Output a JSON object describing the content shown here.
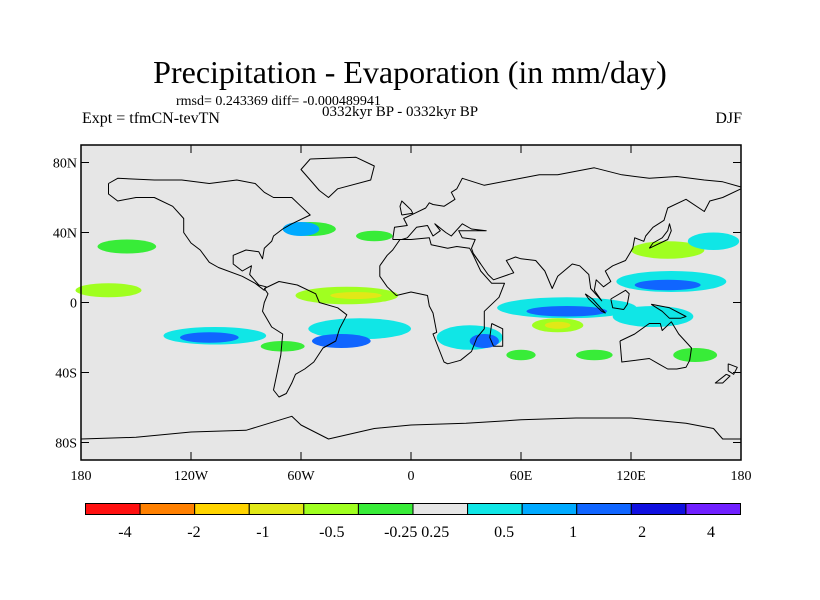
{
  "chart_data": {
    "type": "heatmap",
    "title": "Precipitation - Evaporation (in mm/day)",
    "stats_text": "rmsd= 0.243369 diff= -0.000489941",
    "period_text": "0332kyr BP - 0332kyr BP",
    "experiment_text": "Expt = tfmCN-tevTN",
    "season_text": "DJF",
    "x_ticks": [
      {
        "value": -180,
        "label": "180"
      },
      {
        "value": -120,
        "label": "120W"
      },
      {
        "value": -60,
        "label": "60W"
      },
      {
        "value": 0,
        "label": "0"
      },
      {
        "value": 60,
        "label": "60E"
      },
      {
        "value": 120,
        "label": "120E"
      },
      {
        "value": 180,
        "label": "180"
      }
    ],
    "y_ticks": [
      {
        "value": 80,
        "label": "80N"
      },
      {
        "value": 40,
        "label": "40N"
      },
      {
        "value": 0,
        "label": "0"
      },
      {
        "value": -40,
        "label": "40S"
      },
      {
        "value": -80,
        "label": "80S"
      }
    ],
    "xlim": [
      -180,
      180
    ],
    "ylim": [
      -90,
      90
    ],
    "background_color": "#e6e6e6",
    "colorbar": {
      "levels": [
        {
          "label": "-4"
        },
        {
          "label": ""
        },
        {
          "label": "-2"
        },
        {
          "label": ""
        },
        {
          "label": "-1"
        },
        {
          "label": ""
        },
        {
          "label": "-0.5"
        },
        {
          "label": ""
        },
        {
          "label": "-0.25"
        },
        {
          "label": "0.25"
        },
        {
          "label": ""
        },
        {
          "label": "0.5"
        },
        {
          "label": ""
        },
        {
          "label": "1"
        },
        {
          "label": ""
        },
        {
          "label": "2"
        },
        {
          "label": ""
        },
        {
          "label": "4"
        }
      ],
      "colors": [
        "#ff1010",
        "#ff8000",
        "#ffd400",
        "#e1e817",
        "#a0ff20",
        "#38ec38",
        "#e6e6e6",
        "#10e6e6",
        "#00aaff",
        "#1065ff",
        "#1010e0",
        "#7020ff"
      ]
    },
    "anomaly_regions": [
      {
        "lon": -107,
        "lat": -19,
        "rx": 28,
        "ry": 5,
        "color": "#10e6e6"
      },
      {
        "lon": -110,
        "lat": -20,
        "rx": 16,
        "ry": 3,
        "color": "#1065ff"
      },
      {
        "lon": -28,
        "lat": -15,
        "rx": 28,
        "ry": 6,
        "color": "#10e6e6"
      },
      {
        "lon": -38,
        "lat": -22,
        "rx": 16,
        "ry": 4,
        "color": "#1065ff"
      },
      {
        "lon": 32,
        "lat": -20,
        "rx": 18,
        "ry": 7,
        "color": "#10e6e6"
      },
      {
        "lon": 40,
        "lat": -22,
        "rx": 8,
        "ry": 4,
        "color": "#1065ff"
      },
      {
        "lon": 85,
        "lat": -3,
        "rx": 38,
        "ry": 6,
        "color": "#10e6e6"
      },
      {
        "lon": 85,
        "lat": -5,
        "rx": 22,
        "ry": 3,
        "color": "#1065ff"
      },
      {
        "lon": 142,
        "lat": 12,
        "rx": 30,
        "ry": 6,
        "color": "#10e6e6"
      },
      {
        "lon": 140,
        "lat": 10,
        "rx": 18,
        "ry": 3,
        "color": "#1065ff"
      },
      {
        "lon": 132,
        "lat": -8,
        "rx": 22,
        "ry": 6,
        "color": "#10e6e6"
      },
      {
        "lon": -35,
        "lat": 4,
        "rx": 28,
        "ry": 5,
        "color": "#a0ff20"
      },
      {
        "lon": -30,
        "lat": 4,
        "rx": 14,
        "ry": 2,
        "color": "#e1e817"
      },
      {
        "lon": 80,
        "lat": -13,
        "rx": 14,
        "ry": 4,
        "color": "#a0ff20"
      },
      {
        "lon": 80,
        "lat": -13,
        "rx": 7,
        "ry": 2,
        "color": "#e1e817"
      },
      {
        "lon": -165,
        "lat": 7,
        "rx": 18,
        "ry": 4,
        "color": "#a0ff20"
      },
      {
        "lon": -155,
        "lat": 32,
        "rx": 16,
        "ry": 4,
        "color": "#38ec38"
      },
      {
        "lon": -55,
        "lat": 42,
        "rx": 14,
        "ry": 4,
        "color": "#38ec38"
      },
      {
        "lon": -60,
        "lat": 42,
        "rx": 10,
        "ry": 4,
        "color": "#00aaff"
      },
      {
        "lon": -20,
        "lat": 38,
        "rx": 10,
        "ry": 3,
        "color": "#38ec38"
      },
      {
        "lon": -70,
        "lat": -25,
        "rx": 12,
        "ry": 3,
        "color": "#38ec38"
      },
      {
        "lon": 140,
        "lat": 30,
        "rx": 20,
        "ry": 5,
        "color": "#a0ff20"
      },
      {
        "lon": 165,
        "lat": 35,
        "rx": 14,
        "ry": 5,
        "color": "#10e6e6"
      },
      {
        "lon": 155,
        "lat": -30,
        "rx": 12,
        "ry": 4,
        "color": "#38ec38"
      },
      {
        "lon": 100,
        "lat": -30,
        "rx": 10,
        "ry": 3,
        "color": "#38ec38"
      },
      {
        "lon": 60,
        "lat": -30,
        "rx": 8,
        "ry": 3,
        "color": "#38ec38"
      }
    ]
  }
}
